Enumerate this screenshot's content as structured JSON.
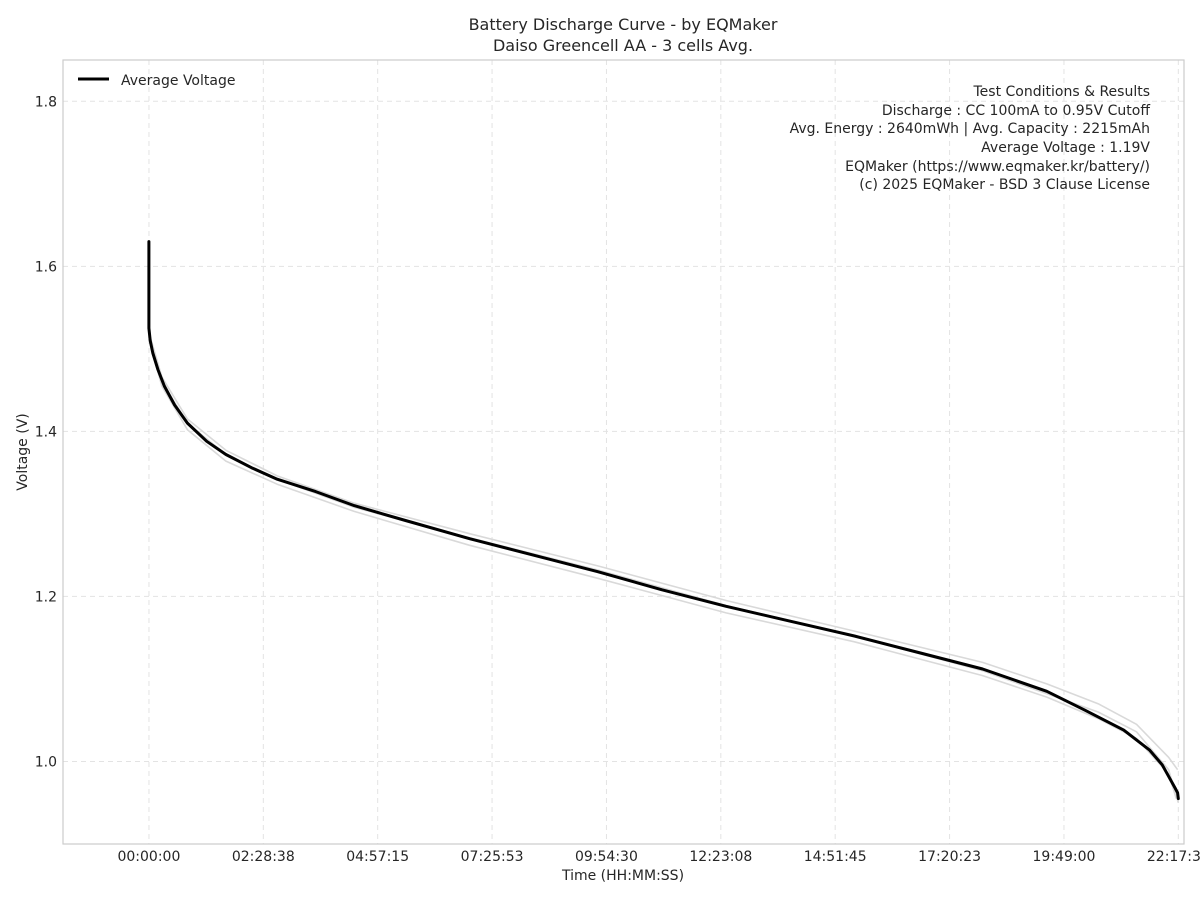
{
  "chart_data": {
    "type": "line",
    "title": "Battery Discharge Curve - by EQMaker",
    "subtitle": "Daiso Greencell AA - 3 cells Avg.",
    "xlabel": "Time (HH:MM:SS)",
    "ylabel": "Voltage (V)",
    "x_unit": "seconds",
    "xlim": [
      -6700,
      80700
    ],
    "ylim": [
      0.9,
      1.85
    ],
    "x_tick_values": [
      0,
      8918,
      17835,
      26753,
      35670,
      44588,
      53505,
      62423,
      71340,
      80258
    ],
    "x_tick_labels": [
      "00:00:00",
      "02:28:38",
      "04:57:15",
      "07:25:53",
      "09:54:30",
      "12:23:08",
      "14:51:45",
      "17:20:23",
      "19:49:00",
      "22:17:38"
    ],
    "y_ticks": [
      1.0,
      1.2,
      1.4,
      1.6,
      1.8
    ],
    "y_tick_labels": [
      "1.0",
      "1.2",
      "1.4",
      "1.6",
      "1.8"
    ],
    "grid": true,
    "legend_position": "top-left",
    "series": [
      {
        "name": "Average Voltage",
        "color": "#000000",
        "x": [
          0,
          0,
          0,
          100,
          300,
          700,
          1200,
          2000,
          3000,
          4500,
          6000,
          8000,
          10000,
          13000,
          16000,
          20000,
          25000,
          30000,
          35000,
          40000,
          45000,
          50000,
          55000,
          60000,
          65000,
          70000,
          73000,
          76000,
          78000,
          79000,
          79500,
          80000,
          80200,
          80258
        ],
        "y": [
          1.63,
          1.6,
          1.525,
          1.51,
          1.495,
          1.475,
          1.455,
          1.432,
          1.41,
          1.388,
          1.372,
          1.356,
          1.342,
          1.327,
          1.31,
          1.292,
          1.27,
          1.25,
          1.23,
          1.208,
          1.188,
          1.17,
          1.152,
          1.132,
          1.112,
          1.085,
          1.062,
          1.038,
          1.014,
          0.996,
          0.982,
          0.968,
          0.962,
          0.955
        ]
      }
    ],
    "background_series": [
      {
        "color": "#d9d9d9",
        "x": [
          0,
          1000,
          3000,
          6000,
          10000,
          16000,
          25000,
          35000,
          45000,
          55000,
          65000,
          70000,
          74000,
          77000,
          79500,
          80200
        ],
        "y": [
          1.52,
          1.466,
          1.415,
          1.377,
          1.346,
          1.313,
          1.276,
          1.237,
          1.195,
          1.158,
          1.12,
          1.094,
          1.07,
          1.045,
          1.005,
          0.99
        ]
      },
      {
        "color": "#d9d9d9",
        "x": [
          0,
          1000,
          3000,
          6000,
          10000,
          16000,
          25000,
          35000,
          45000,
          55000,
          65000,
          70000,
          74000,
          77000,
          79500,
          80100
        ],
        "y": [
          1.512,
          1.455,
          1.402,
          1.364,
          1.336,
          1.303,
          1.262,
          1.222,
          1.18,
          1.145,
          1.104,
          1.078,
          1.052,
          1.028,
          0.985,
          0.955
        ]
      },
      {
        "color": "#d9d9d9",
        "x": [
          0,
          1000,
          3000,
          6000,
          10000,
          16000,
          25000,
          35000,
          45000,
          55000,
          65000,
          70000,
          74000,
          77000,
          79500,
          80258
        ],
        "y": [
          1.515,
          1.46,
          1.41,
          1.372,
          1.342,
          1.308,
          1.271,
          1.232,
          1.189,
          1.152,
          1.11,
          1.082,
          1.06,
          1.036,
          0.99,
          0.95
        ]
      }
    ],
    "annotations": [
      "Test Conditions & Results",
      "Discharge : CC 100mA to 0.95V Cutoff",
      "Avg. Energy : 2640mWh | Avg. Capacity : 2215mAh",
      "Average Voltage : 1.19V",
      "EQMaker (https://www.eqmaker.kr/battery/)",
      "(c) 2025 EQMaker - BSD 3 Clause License"
    ]
  }
}
